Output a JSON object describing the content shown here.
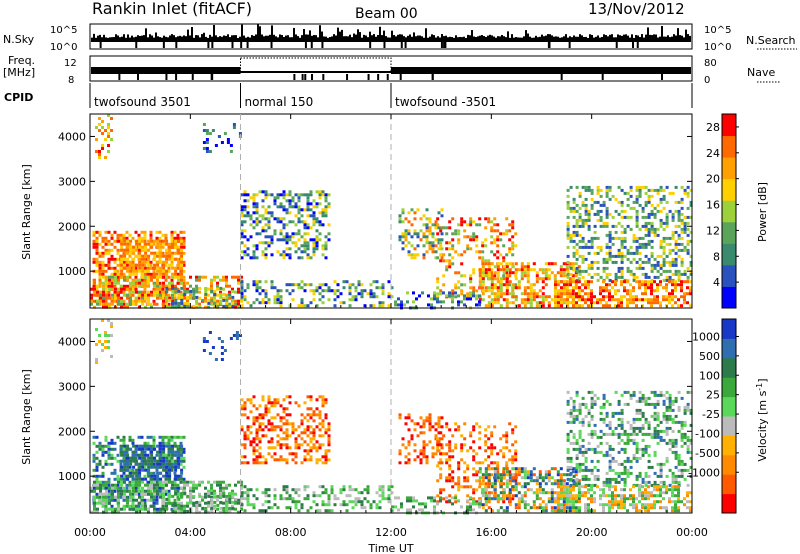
{
  "header": {
    "station": "Rankin Inlet (fitACF)",
    "beam": "Beam 00",
    "date": "13/Nov/2012"
  },
  "panels": {
    "nsky_label": "N.Sky",
    "nsearch_label": "N.Search",
    "freq_label_line1": "Freq.",
    "freq_label_line2": "[MHz]",
    "nave_label": "Nave",
    "cpid_label": "CPID",
    "nsky_ticks": [
      "10^5",
      "10^0"
    ],
    "nsearch_ticks": [
      "10^5",
      "10^0"
    ],
    "freq_ticks": [
      "12",
      "8"
    ],
    "nave_ticks": [
      "80",
      "0"
    ]
  },
  "cpid_segments": [
    {
      "label": "twofsound 3501",
      "start": 0,
      "end": 6
    },
    {
      "label": "normal 150",
      "start": 6,
      "end": 12
    },
    {
      "label": "twofsound -3501",
      "start": 12,
      "end": 24
    }
  ],
  "colors": {
    "power_scale": [
      "#0000ff",
      "#2a52be",
      "#3a8a6e",
      "#5aa55a",
      "#9cd13a",
      "#ffd000",
      "#ffa000",
      "#ff6a00",
      "#ff0000"
    ],
    "velocity_scale": [
      "#1838c8",
      "#2f6fb0",
      "#2d7a4a",
      "#3aa83a",
      "#5ad85a",
      "#bbbbbb",
      "#ffb000",
      "#ff8a00",
      "#ff5a00",
      "#ff0000"
    ]
  },
  "chart_data": [
    {
      "type": "heatmap",
      "name": "power",
      "xlabel": "",
      "ylabel": "Slant Range [km]",
      "xlim": [
        0,
        24
      ],
      "ylim": [
        180,
        4500
      ],
      "yticks": [
        "1000",
        "2000",
        "3000",
        "4000"
      ],
      "colorbar_label": "Power [dB]",
      "colorbar_ticks": [
        "4",
        "8",
        "12",
        "16",
        "20",
        "24",
        "28"
      ],
      "colorbar_range": [
        0,
        30
      ]
    },
    {
      "type": "heatmap",
      "name": "velocity",
      "xlabel": "Time UT",
      "ylabel": "Slant Range [km]",
      "xlim": [
        0,
        24
      ],
      "ylim": [
        180,
        4500
      ],
      "xticks": [
        "00:00",
        "04:00",
        "08:00",
        "12:00",
        "16:00",
        "20:00",
        "00:00"
      ],
      "yticks": [
        "1000",
        "2000",
        "3000",
        "4000"
      ],
      "colorbar_label": "Velocity [m s^-1]",
      "colorbar_ticks": [
        "1000",
        "500",
        "100",
        "25",
        "-25",
        "-100",
        "-500",
        "-1000"
      ]
    }
  ]
}
